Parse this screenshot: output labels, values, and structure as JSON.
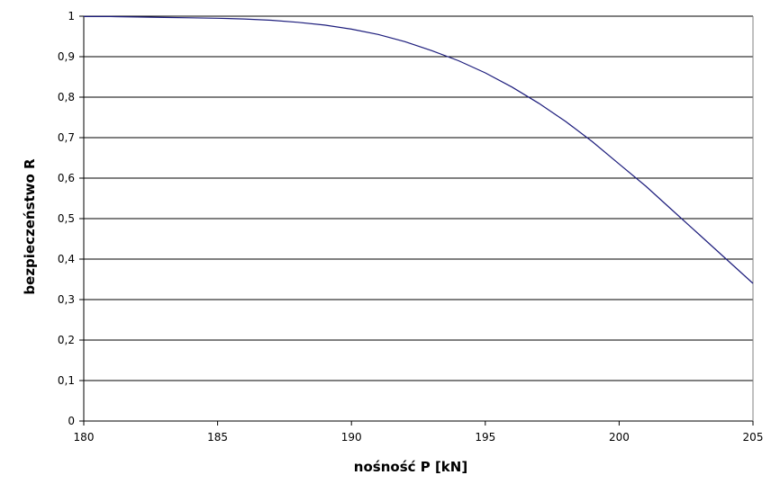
{
  "chart_data": {
    "type": "line",
    "title": "",
    "xlabel": "nośność P [kN]",
    "ylabel": "bezpieczeństwo R",
    "xlim": [
      180,
      205
    ],
    "ylim": [
      0,
      1
    ],
    "x_ticks": [
      180,
      185,
      190,
      195,
      200,
      205
    ],
    "x_tick_labels": [
      "180",
      "185",
      "190",
      "195",
      "200",
      "205"
    ],
    "y_ticks": [
      0,
      0.1,
      0.2,
      0.3,
      0.4,
      0.5,
      0.6,
      0.7,
      0.8,
      0.9,
      1
    ],
    "y_tick_labels": [
      "0",
      "0,1",
      "0,2",
      "0,3",
      "0,4",
      "0,5",
      "0,6",
      "0,7",
      "0,8",
      "0,9",
      "1"
    ],
    "grid": "horizontal",
    "legend": "none",
    "line_color": "#1c1c7c",
    "series": [
      {
        "x": [
          180,
          181,
          182,
          183,
          184,
          185,
          186,
          187,
          188,
          189,
          190,
          191,
          192,
          193,
          194,
          195,
          196,
          197,
          198,
          199,
          200,
          201,
          202,
          203,
          204,
          205
        ],
        "y": [
          0.999,
          0.999,
          0.998,
          0.997,
          0.996,
          0.995,
          0.993,
          0.99,
          0.985,
          0.978,
          0.968,
          0.955,
          0.937,
          0.915,
          0.89,
          0.86,
          0.825,
          0.785,
          0.74,
          0.69,
          0.635,
          0.58,
          0.52,
          0.46,
          0.4,
          0.34
        ]
      }
    ]
  }
}
